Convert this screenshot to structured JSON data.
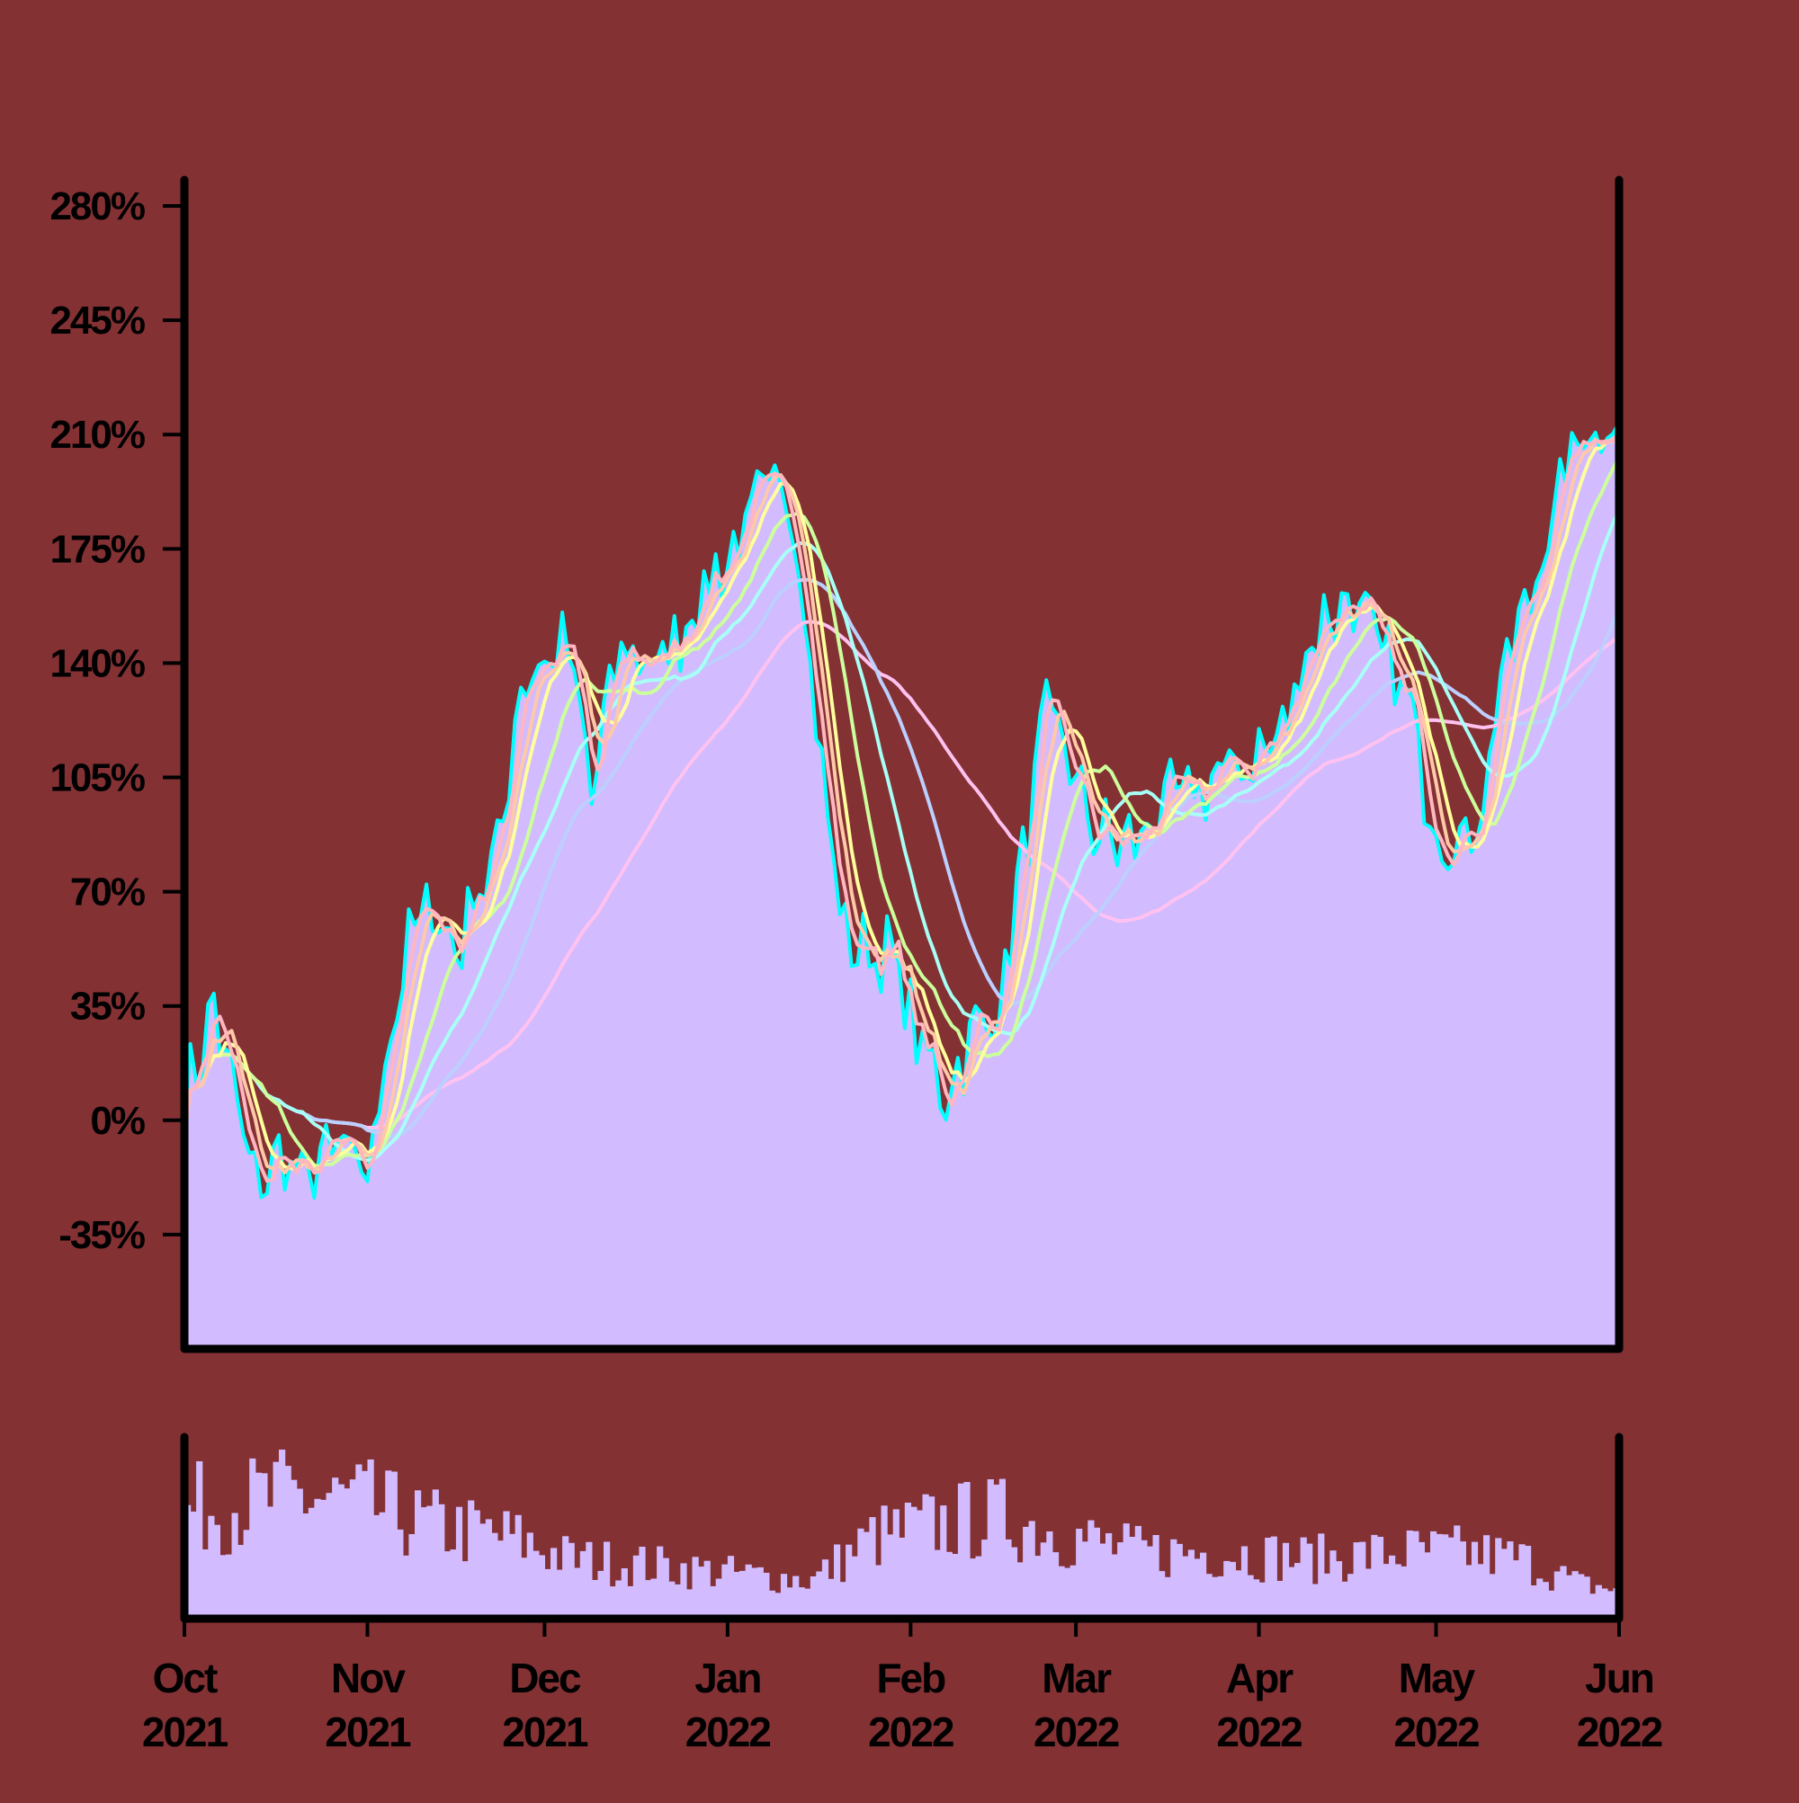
{
  "chart_data": [
    {
      "type": "area",
      "panel": "price",
      "y_unit": "%",
      "ylim": [
        -70,
        288
      ],
      "y_ticks": [
        -35,
        0,
        35,
        70,
        105,
        140,
        175,
        210,
        245,
        280
      ],
      "y_tick_labels": [
        "-35%",
        "0%",
        "35%",
        "70%",
        "105%",
        "140%",
        "175%",
        "210%",
        "245%",
        "280%"
      ],
      "xlim": [
        "2021-10-01",
        "2022-06-01"
      ],
      "grid": false,
      "legend": "none",
      "area_color": "#d2bbff",
      "price_line_color": "#00ffff",
      "anchors": {
        "x": [
          "2021-10-01",
          "2021-10-06",
          "2021-10-13",
          "2021-10-18",
          "2021-10-21",
          "2021-10-25",
          "2021-10-28",
          "2021-11-01",
          "2021-11-04",
          "2021-11-09",
          "2021-11-13",
          "2021-11-16",
          "2021-11-19",
          "2021-11-23",
          "2021-11-27",
          "2021-12-01",
          "2021-12-05",
          "2021-12-09",
          "2021-12-13",
          "2021-12-16",
          "2021-12-20",
          "2021-12-24",
          "2021-12-29",
          "2022-01-02",
          "2022-01-07",
          "2022-01-11",
          "2022-01-14",
          "2022-01-17",
          "2022-01-21",
          "2022-01-25",
          "2022-01-29",
          "2022-02-02",
          "2022-02-07",
          "2022-02-11",
          "2022-02-16",
          "2022-02-20",
          "2022-02-24",
          "2022-02-28",
          "2022-03-03",
          "2022-03-07",
          "2022-03-11",
          "2022-03-15",
          "2022-03-20",
          "2022-03-25",
          "2022-03-30",
          "2022-04-05",
          "2022-04-09",
          "2022-04-13",
          "2022-04-17",
          "2022-04-21",
          "2022-04-26",
          "2022-04-30",
          "2022-05-04",
          "2022-05-08",
          "2022-05-12",
          "2022-05-16",
          "2022-05-20",
          "2022-05-25",
          "2022-05-28",
          "2022-06-01"
        ],
        "y": [
          5,
          35,
          -20,
          -10,
          -20,
          -10,
          -10,
          -18,
          20,
          60,
          65,
          50,
          70,
          80,
          135,
          140,
          145,
          100,
          140,
          145,
          138,
          150,
          165,
          175,
          190,
          198,
          160,
          105,
          55,
          52,
          50,
          25,
          8,
          25,
          35,
          80,
          125,
          110,
          92,
          85,
          85,
          95,
          100,
          105,
          110,
          118,
          145,
          155,
          160,
          145,
          130,
          95,
          85,
          90,
          135,
          155,
          180,
          210,
          212,
          215
        ]
      },
      "moving_averages": [
        {
          "window": 3,
          "color": "#ffb6c1"
        },
        {
          "window": 5,
          "color": "#ffc8a8"
        },
        {
          "window": 7,
          "color": "#fffd9c"
        },
        {
          "window": 13,
          "color": "#ccff9c"
        },
        {
          "window": 20,
          "color": "#a8fff5"
        },
        {
          "window": 30,
          "color": "#bcd0ff"
        },
        {
          "window": 50,
          "color": "#ffc2f0"
        }
      ]
    },
    {
      "type": "bar",
      "panel": "volume",
      "bar_color": "#d2bbff",
      "x_ticks": [
        "2021-10-01",
        "2021-11-01",
        "2021-12-01",
        "2022-01-01",
        "2022-02-01",
        "2022-03-01",
        "2022-04-01",
        "2022-05-01",
        "2022-06-01"
      ],
      "x_tick_labels": [
        {
          "month": "Oct",
          "year": "2021"
        },
        {
          "month": "Nov",
          "year": "2021"
        },
        {
          "month": "Dec",
          "year": "2021"
        },
        {
          "month": "Jan",
          "year": "2022"
        },
        {
          "month": "Feb",
          "year": "2022"
        },
        {
          "month": "Mar",
          "year": "2022"
        },
        {
          "month": "Apr",
          "year": "2022"
        },
        {
          "month": "May",
          "year": "2022"
        },
        {
          "month": "Jun",
          "year": "2022"
        }
      ],
      "volume_profile": {
        "x": [
          "2021-10-01",
          "2021-10-10",
          "2021-10-20",
          "2021-10-30",
          "2021-11-10",
          "2021-11-25",
          "2021-12-05",
          "2021-12-20",
          "2022-01-01",
          "2022-01-15",
          "2022-01-25",
          "2022-02-05",
          "2022-02-15",
          "2022-02-25",
          "2022-03-10",
          "2022-03-25",
          "2022-04-10",
          "2022-04-25",
          "2022-05-05",
          "2022-05-15",
          "2022-05-25",
          "2022-06-01"
        ],
        "relative_volume": [
          0.75,
          0.8,
          0.85,
          0.8,
          0.65,
          0.55,
          0.4,
          0.35,
          0.3,
          0.25,
          0.55,
          0.65,
          0.7,
          0.6,
          0.45,
          0.45,
          0.4,
          0.45,
          0.45,
          0.4,
          0.22,
          0.18
        ]
      }
    }
  ]
}
